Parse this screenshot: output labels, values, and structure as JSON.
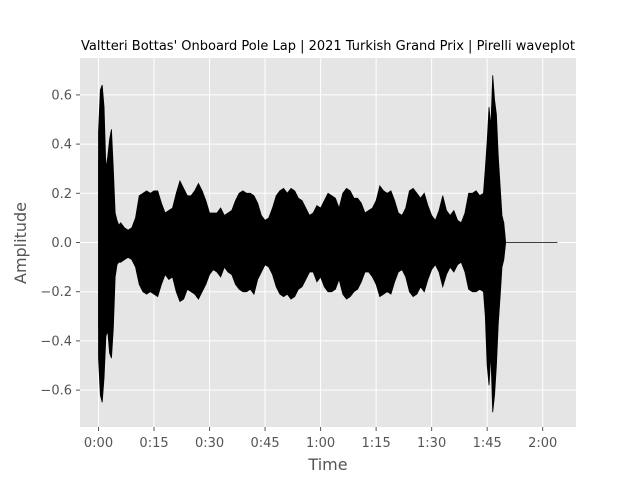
{
  "chart_data": {
    "type": "line",
    "title": "Valtteri Bottas' Onboard Pole Lap | 2021 Turkish Grand Prix | Pirelli waveplot",
    "xlabel": "Time",
    "ylabel": "Amplitude",
    "x_unit": "seconds",
    "xlim": [
      -5,
      129
    ],
    "ylim": [
      -0.75,
      0.75
    ],
    "x_ticks": [
      0,
      15,
      30,
      45,
      60,
      75,
      90,
      105,
      120
    ],
    "x_tick_labels": [
      "0:00",
      "0:15",
      "0:30",
      "0:45",
      "1:00",
      "1:15",
      "1:30",
      "1:45",
      "2:00"
    ],
    "y_ticks": [
      -0.6,
      -0.4,
      -0.2,
      0.0,
      0.2,
      0.4,
      0.6
    ],
    "y_tick_labels": [
      "−0.6",
      "−0.4",
      "−0.2",
      "0.0",
      "0.2",
      "0.4",
      "0.6"
    ],
    "grid": true,
    "style": "ggplot",
    "colors": {
      "background": "#e5e5e5",
      "grid": "#ffffff",
      "wave": "#000000"
    },
    "series": [
      {
        "values_note_free": true,
        "x": [
          0,
          0.5,
          1,
          1.5,
          2,
          2.5,
          3,
          3.5,
          4,
          4.5,
          5,
          5.5,
          6,
          7,
          8,
          9,
          10,
          11,
          12,
          13,
          14,
          15,
          16,
          17,
          18,
          19,
          20,
          21,
          22,
          23,
          24,
          25,
          26,
          27,
          28,
          29,
          30,
          31,
          32,
          33,
          34,
          35,
          36,
          37,
          38,
          39,
          40,
          41,
          42,
          43,
          44,
          45,
          46,
          47,
          48,
          49,
          50,
          51,
          52,
          53,
          54,
          55,
          56,
          57,
          58,
          59,
          60,
          61,
          62,
          63,
          64,
          65,
          66,
          67,
          68,
          69,
          70,
          71,
          72,
          73,
          74,
          75,
          76,
          77,
          78,
          79,
          80,
          81,
          82,
          83,
          84,
          85,
          86,
          87,
          88,
          89,
          90,
          91,
          92,
          93,
          94,
          95,
          96,
          97,
          98,
          99,
          100,
          101,
          102,
          103,
          104,
          104.5,
          105,
          105.5,
          106,
          106.5,
          107,
          107.5,
          108,
          108.5,
          109,
          109.5,
          110,
          112,
          115,
          118,
          121,
          124
        ],
        "upper": [
          0.45,
          0.62,
          0.64,
          0.55,
          0.3,
          0.35,
          0.42,
          0.46,
          0.3,
          0.12,
          0.09,
          0.07,
          0.08,
          0.06,
          0.05,
          0.06,
          0.1,
          0.19,
          0.2,
          0.21,
          0.2,
          0.21,
          0.21,
          0.16,
          0.12,
          0.13,
          0.14,
          0.2,
          0.25,
          0.22,
          0.19,
          0.19,
          0.21,
          0.24,
          0.21,
          0.17,
          0.12,
          0.12,
          0.12,
          0.14,
          0.11,
          0.12,
          0.13,
          0.17,
          0.2,
          0.21,
          0.2,
          0.2,
          0.19,
          0.16,
          0.11,
          0.09,
          0.1,
          0.14,
          0.19,
          0.21,
          0.22,
          0.2,
          0.22,
          0.21,
          0.18,
          0.17,
          0.14,
          0.11,
          0.12,
          0.15,
          0.14,
          0.17,
          0.2,
          0.19,
          0.18,
          0.14,
          0.2,
          0.22,
          0.21,
          0.18,
          0.18,
          0.16,
          0.12,
          0.13,
          0.14,
          0.17,
          0.23,
          0.21,
          0.2,
          0.21,
          0.17,
          0.12,
          0.11,
          0.14,
          0.21,
          0.22,
          0.2,
          0.18,
          0.2,
          0.15,
          0.11,
          0.09,
          0.13,
          0.19,
          0.13,
          0.11,
          0.13,
          0.09,
          0.08,
          0.12,
          0.2,
          0.2,
          0.21,
          0.19,
          0.2,
          0.3,
          0.41,
          0.55,
          0.47,
          0.68,
          0.58,
          0.52,
          0.35,
          0.23,
          0.11,
          0.08,
          0.0,
          0.0,
          0.0,
          0.0,
          0.0,
          0.0
        ],
        "lower": [
          -0.47,
          -0.62,
          -0.65,
          -0.55,
          -0.38,
          -0.36,
          -0.45,
          -0.47,
          -0.35,
          -0.14,
          -0.09,
          -0.08,
          -0.08,
          -0.07,
          -0.06,
          -0.07,
          -0.1,
          -0.17,
          -0.2,
          -0.21,
          -0.2,
          -0.21,
          -0.22,
          -0.17,
          -0.13,
          -0.15,
          -0.14,
          -0.2,
          -0.24,
          -0.23,
          -0.19,
          -0.2,
          -0.21,
          -0.23,
          -0.2,
          -0.17,
          -0.13,
          -0.11,
          -0.12,
          -0.14,
          -0.1,
          -0.12,
          -0.13,
          -0.17,
          -0.19,
          -0.2,
          -0.2,
          -0.19,
          -0.21,
          -0.15,
          -0.12,
          -0.09,
          -0.1,
          -0.13,
          -0.18,
          -0.21,
          -0.22,
          -0.21,
          -0.23,
          -0.22,
          -0.19,
          -0.18,
          -0.15,
          -0.12,
          -0.12,
          -0.16,
          -0.14,
          -0.18,
          -0.2,
          -0.2,
          -0.19,
          -0.15,
          -0.21,
          -0.23,
          -0.22,
          -0.2,
          -0.19,
          -0.16,
          -0.12,
          -0.12,
          -0.14,
          -0.17,
          -0.22,
          -0.21,
          -0.2,
          -0.21,
          -0.16,
          -0.12,
          -0.11,
          -0.14,
          -0.2,
          -0.22,
          -0.21,
          -0.18,
          -0.2,
          -0.15,
          -0.11,
          -0.09,
          -0.12,
          -0.18,
          -0.13,
          -0.1,
          -0.12,
          -0.09,
          -0.08,
          -0.12,
          -0.19,
          -0.2,
          -0.2,
          -0.19,
          -0.2,
          -0.3,
          -0.5,
          -0.58,
          -0.45,
          -0.69,
          -0.62,
          -0.5,
          -0.33,
          -0.22,
          -0.1,
          -0.07,
          0.0,
          0.0,
          0.0,
          0.0,
          0.0,
          0.0
        ]
      }
    ]
  }
}
